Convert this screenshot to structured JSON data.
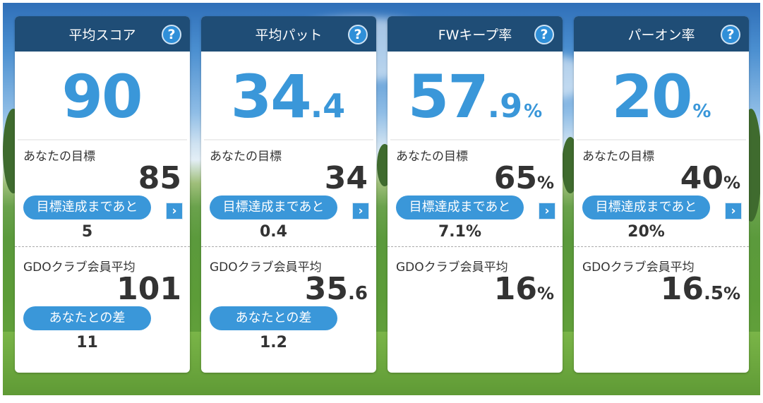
{
  "cards": [
    {
      "title": "平均スコア",
      "help": "?",
      "value": {
        "main": "90",
        "dec": "",
        "unit": ""
      },
      "goal_label": "あなたの目標",
      "goal": {
        "main": "85",
        "dec": "",
        "unit": ""
      },
      "remain_label": "目標達成まであと",
      "remain": "5",
      "avg_label": "GDOクラブ会員平均",
      "avg": {
        "main": "101",
        "dec": "",
        "unit": ""
      },
      "diff_label": "あなたとの差",
      "diff": "11"
    },
    {
      "title": "平均パット",
      "help": "?",
      "value": {
        "main": "34",
        "dec": ".4",
        "unit": ""
      },
      "goal_label": "あなたの目標",
      "goal": {
        "main": "34",
        "dec": "",
        "unit": ""
      },
      "remain_label": "目標達成まであと",
      "remain": "0.4",
      "avg_label": "GDOクラブ会員平均",
      "avg": {
        "main": "35",
        "dec": ".6",
        "unit": ""
      },
      "diff_label": "あなたとの差",
      "diff": "1.2"
    },
    {
      "title": "FWキープ率",
      "help": "?",
      "value": {
        "main": "57",
        "dec": ".9",
        "unit": "%"
      },
      "goal_label": "あなたの目標",
      "goal": {
        "main": "65",
        "dec": "",
        "unit": "%"
      },
      "remain_label": "目標達成まであと",
      "remain": "7.1%",
      "avg_label": "GDOクラブ会員平均",
      "avg": {
        "main": "16",
        "dec": "",
        "unit": "%"
      }
    },
    {
      "title": "パーオン率",
      "help": "?",
      "value": {
        "main": "20",
        "dec": "",
        "unit": "%"
      },
      "goal_label": "あなたの目標",
      "goal": {
        "main": "40",
        "dec": "",
        "unit": "%"
      },
      "remain_label": "目標達成まであと",
      "remain": "20%",
      "avg_label": "GDOクラブ会員平均",
      "avg": {
        "main": "16",
        "dec": ".5",
        "unit": "%"
      }
    }
  ],
  "icons": {
    "help": "help-icon",
    "arrow": "chevron-right-icon",
    "arrow_glyph": "›"
  },
  "colors": {
    "header": "#1f4d76",
    "accent": "#3a97d9",
    "text": "#333333"
  }
}
